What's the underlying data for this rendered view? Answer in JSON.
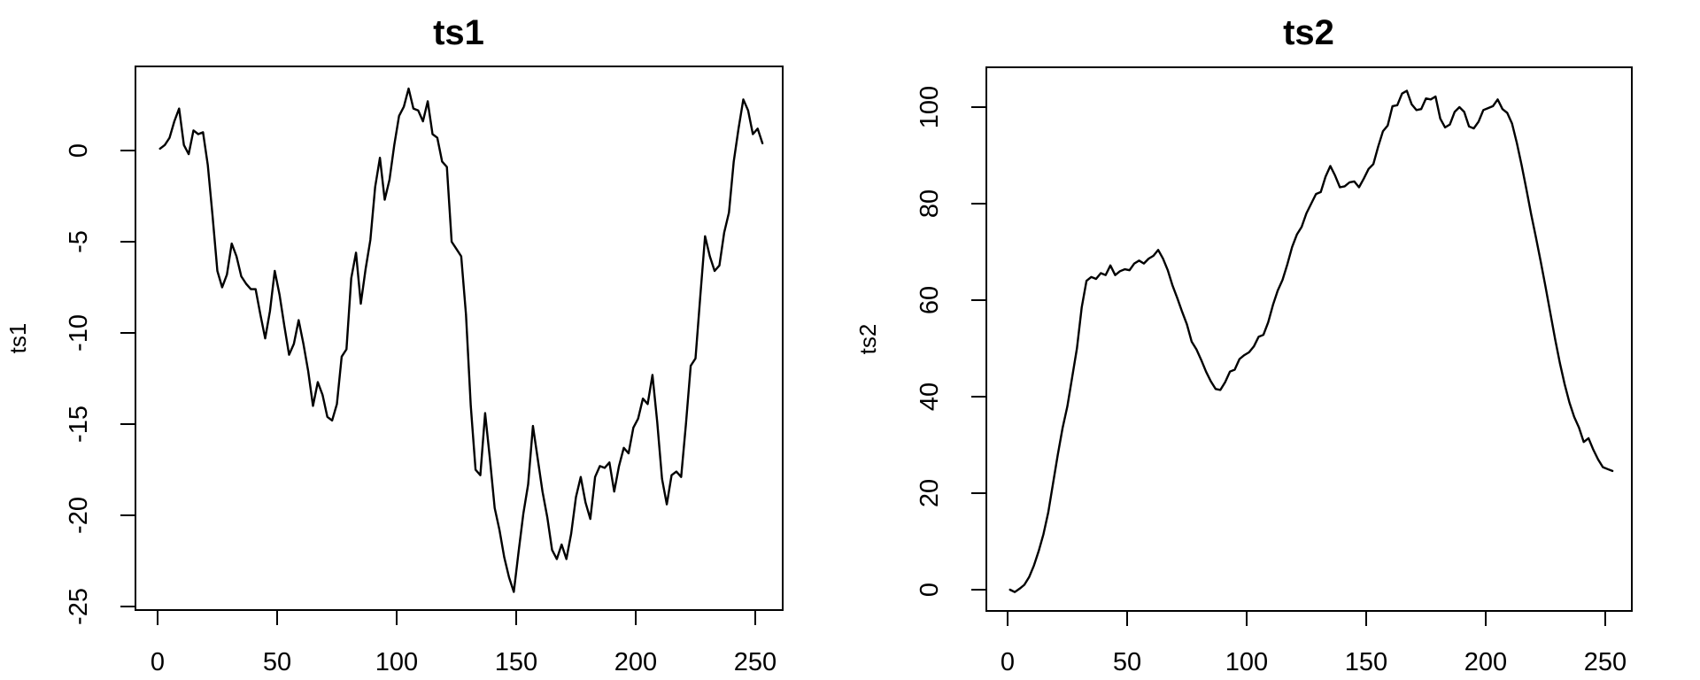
{
  "figure": {
    "background": "#ffffff",
    "line_color": "#000000",
    "panel_count": 2
  },
  "chart_data": [
    {
      "type": "line",
      "title": "ts1",
      "xlabel": "",
      "ylabel": "ts1",
      "x_ticks": [
        0,
        50,
        100,
        150,
        200,
        250
      ],
      "y_ticks": [
        0,
        -5,
        -10,
        -15,
        -20,
        -25
      ],
      "xlim": [
        -9,
        263
      ],
      "ylim": [
        -25.3,
        4.7
      ],
      "grid": false,
      "legend": "none",
      "line_color": "#000000",
      "x_start": 1,
      "x_step": 2,
      "values": [
        0.1,
        0.3,
        0.7,
        1.6,
        2.3,
        0.3,
        -0.2,
        1.1,
        0.9,
        1.0,
        -0.8,
        -3.6,
        -6.6,
        -7.5,
        -6.8,
        -5.1,
        -5.8,
        -6.9,
        -7.3,
        -7.6,
        -7.6,
        -9.0,
        -10.3,
        -8.8,
        -6.6,
        -7.9,
        -9.6,
        -11.2,
        -10.6,
        -9.3,
        -10.6,
        -12.1,
        -14.0,
        -12.7,
        -13.4,
        -14.6,
        -14.8,
        -13.9,
        -11.3,
        -10.9,
        -7.0,
        -5.6,
        -8.4,
        -6.5,
        -4.9,
        -2.0,
        -0.4,
        -2.7,
        -1.6,
        0.3,
        1.9,
        2.4,
        3.4,
        2.3,
        2.2,
        1.6,
        2.7,
        0.9,
        0.7,
        -0.6,
        -0.9,
        -5.0,
        -5.4,
        -5.8,
        -9.0,
        -14.0,
        -17.5,
        -17.8,
        -14.4,
        -16.9,
        -19.6,
        -20.8,
        -22.3,
        -23.4,
        -24.2,
        -22.0,
        -19.9,
        -18.3,
        -15.1,
        -16.9,
        -18.7,
        -20.1,
        -21.9,
        -22.4,
        -21.6,
        -22.4,
        -21.0,
        -19.0,
        -17.9,
        -19.3,
        -20.2,
        -17.9,
        -17.3,
        -17.4,
        -17.1,
        -18.7,
        -17.3,
        -16.3,
        -16.6,
        -15.2,
        -14.7,
        -13.6,
        -13.9,
        -12.3,
        -14.9,
        -18.0,
        -19.4,
        -17.8,
        -17.6,
        -17.9,
        -15.0,
        -11.8,
        -11.4,
        -8.0,
        -4.7,
        -5.8,
        -6.6,
        -6.3,
        -4.5,
        -3.4,
        -0.6,
        1.2,
        2.8,
        2.2,
        0.9,
        1.2,
        0.4
      ]
    },
    {
      "type": "line",
      "title": "ts2",
      "xlabel": "",
      "ylabel": "ts2",
      "x_ticks": [
        0,
        50,
        100,
        150,
        200,
        250
      ],
      "y_ticks": [
        0,
        20,
        40,
        60,
        80,
        100
      ],
      "xlim": [
        -9,
        263
      ],
      "ylim": [
        -4.7,
        108
      ],
      "grid": false,
      "legend": "none",
      "line_color": "#000000",
      "x_start": 1,
      "x_step": 2,
      "values": [
        0.0,
        -0.5,
        0.2,
        1.0,
        2.6,
        5.0,
        8.0,
        11.5,
        16.0,
        22.0,
        28.0,
        33.5,
        38.0,
        44.0,
        50.0,
        58.5,
        64.0,
        64.8,
        64.4,
        65.6,
        65.2,
        67.2,
        65.2,
        66.0,
        66.4,
        66.2,
        67.6,
        68.2,
        67.6,
        68.6,
        69.2,
        70.4,
        68.6,
        66.2,
        63.0,
        60.4,
        57.6,
        55.0,
        51.4,
        49.8,
        47.6,
        45.2,
        43.2,
        41.6,
        41.4,
        43.0,
        45.2,
        45.6,
        47.8,
        48.6,
        49.2,
        50.4,
        52.4,
        52.8,
        55.4,
        59.0,
        62.0,
        64.2,
        67.4,
        71.0,
        73.6,
        75.2,
        78.0,
        80.0,
        82.0,
        82.4,
        85.6,
        87.8,
        85.8,
        83.4,
        83.6,
        84.4,
        84.6,
        83.4,
        85.2,
        87.2,
        88.2,
        91.8,
        95.0,
        96.2,
        100.2,
        100.4,
        102.8,
        103.4,
        100.6,
        99.4,
        99.6,
        101.8,
        101.6,
        102.2,
        97.6,
        95.8,
        96.4,
        99.0,
        100.0,
        99.0,
        96.0,
        95.6,
        97.0,
        99.4,
        99.8,
        100.2,
        101.6,
        99.6,
        98.8,
        96.6,
        92.6,
        88.0,
        83.0,
        77.8,
        73.0,
        68.0,
        62.8,
        57.4,
        52.0,
        47.0,
        42.6,
        38.8,
        35.8,
        33.6,
        30.6,
        31.4,
        29.0,
        27.0,
        25.4,
        25.0,
        24.6
      ]
    }
  ]
}
